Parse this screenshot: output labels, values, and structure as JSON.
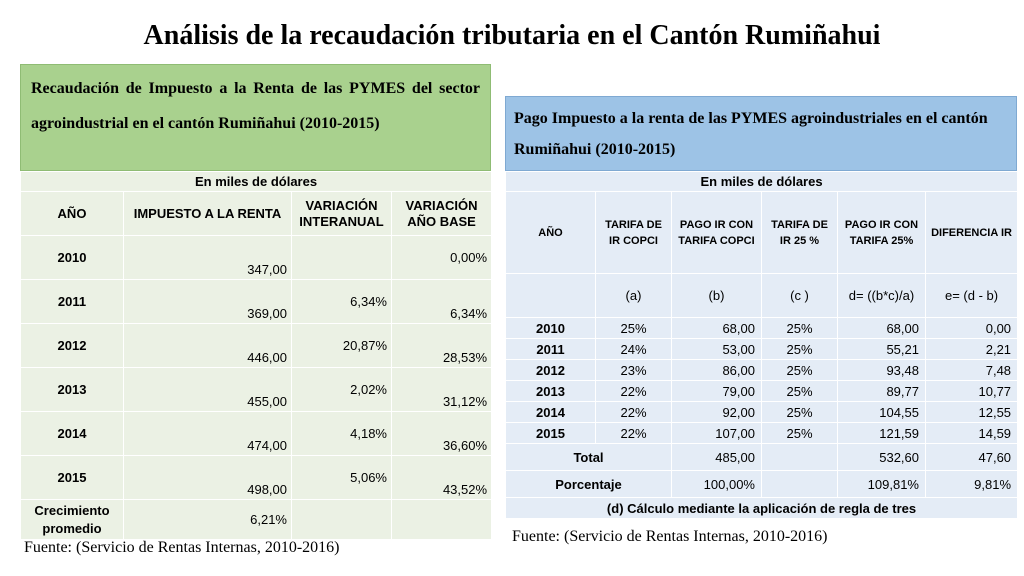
{
  "title": "Análisis de la recaudación tributaria en el Cantón Rumiñahui",
  "left": {
    "heading": "Recaudación de Impuesto a la Renta de las PYMES del sector agroindustrial en el cantón Rumiñahui (2010-2015)",
    "units": "En miles de dólares",
    "columns": [
      "AÑO",
      "IMPUESTO A LA RENTA",
      "VARIACIÓN INTERANUAL",
      "VARIACIÓN AÑO BASE"
    ],
    "rows": [
      {
        "year": "2010",
        "tax": "347,00",
        "yoy": "",
        "base": "0,00%"
      },
      {
        "year": "2011",
        "tax": "369,00",
        "yoy": "6,34%",
        "base": "6,34%"
      },
      {
        "year": "2012",
        "tax": "446,00",
        "yoy": "20,87%",
        "base": "28,53%"
      },
      {
        "year": "2013",
        "tax": "455,00",
        "yoy": "2,02%",
        "base": "31,12%"
      },
      {
        "year": "2014",
        "tax": "474,00",
        "yoy": "4,18%",
        "base": "36,60%"
      },
      {
        "year": "2015",
        "tax": "498,00",
        "yoy": "5,06%",
        "base": "43,52%"
      }
    ],
    "growth_label": "Crecimiento promedio",
    "growth_value": "6,21%",
    "source": "Fuente: (Servicio de Rentas Internas, 2010-2016)"
  },
  "right": {
    "heading": "Pago Impuesto a la renta de las PYMES agroindustriales en el cantón Rumiñahui (2010-2015)",
    "units": "En miles de dólares",
    "columns": [
      "AÑO",
      "TARIFA DE IR COPCI",
      "PAGO IR CON TARIFA COPCI",
      "TARIFA DE IR 25 %",
      "PAGO IR CON TARIFA 25%",
      "DIFERENCIA IR"
    ],
    "symbols": [
      "(a)",
      "(b)",
      "(c )",
      "d= ((b*c)/a)",
      "e= (d - b)"
    ],
    "rows": [
      {
        "year": "2010",
        "a": "25%",
        "b": "68,00",
        "c": "25%",
        "d": "68,00",
        "e": "0,00"
      },
      {
        "year": "2011",
        "a": "24%",
        "b": "53,00",
        "c": "25%",
        "d": "55,21",
        "e": "2,21"
      },
      {
        "year": "2012",
        "a": "23%",
        "b": "86,00",
        "c": "25%",
        "d": "93,48",
        "e": "7,48"
      },
      {
        "year": "2013",
        "a": "22%",
        "b": "79,00",
        "c": "25%",
        "d": "89,77",
        "e": "10,77"
      },
      {
        "year": "2014",
        "a": "22%",
        "b": "92,00",
        "c": "25%",
        "d": "104,55",
        "e": "12,55"
      },
      {
        "year": "2015",
        "a": "22%",
        "b": "107,00",
        "c": "25%",
        "d": "121,59",
        "e": "14,59"
      }
    ],
    "total": {
      "label": "Total",
      "b": "485,00",
      "d": "532,60",
      "e": "47,60"
    },
    "percent": {
      "label": "Porcentaje",
      "b": "100,00%",
      "d": "109,81%",
      "e": "9,81%"
    },
    "note": "(d) Cálculo mediante la aplicación de regla de tres",
    "source": "Fuente: (Servicio de Rentas Internas, 2010-2016)"
  }
}
